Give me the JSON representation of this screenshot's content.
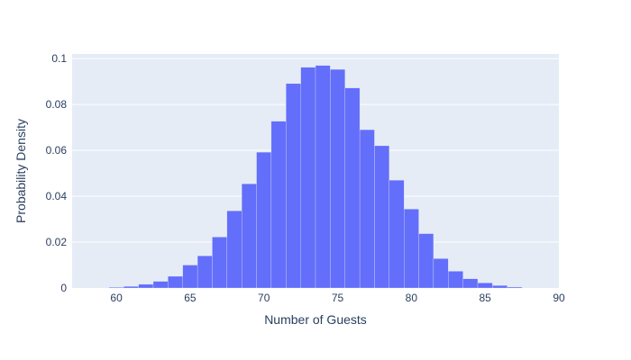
{
  "chart_data": {
    "type": "bar",
    "subtype": "histogram",
    "title": "",
    "xlabel": "Number of Guests",
    "ylabel": "Probability Density",
    "xlim": [
      57,
      90
    ],
    "ylim": [
      0,
      0.102
    ],
    "x_ticks": [
      60,
      65,
      70,
      75,
      80,
      85,
      90
    ],
    "y_ticks": [
      0,
      0.02,
      0.04,
      0.06,
      0.08,
      0.1
    ],
    "y_tick_labels": [
      "0",
      "0.02",
      "0.04",
      "0.06",
      "0.08",
      "0.1"
    ],
    "bin_width": 1,
    "bins": [
      {
        "start": 59.5,
        "value": 0.0003
      },
      {
        "start": 60.5,
        "value": 0.0007
      },
      {
        "start": 61.5,
        "value": 0.0016
      },
      {
        "start": 62.5,
        "value": 0.0029
      },
      {
        "start": 63.5,
        "value": 0.0051
      },
      {
        "start": 64.5,
        "value": 0.01
      },
      {
        "start": 65.5,
        "value": 0.014
      },
      {
        "start": 66.5,
        "value": 0.0222
      },
      {
        "start": 67.5,
        "value": 0.0336
      },
      {
        "start": 68.5,
        "value": 0.0454
      },
      {
        "start": 69.5,
        "value": 0.0592
      },
      {
        "start": 70.5,
        "value": 0.0727
      },
      {
        "start": 71.5,
        "value": 0.0891
      },
      {
        "start": 72.5,
        "value": 0.0962
      },
      {
        "start": 73.5,
        "value": 0.097
      },
      {
        "start": 74.5,
        "value": 0.0953
      },
      {
        "start": 75.5,
        "value": 0.0872
      },
      {
        "start": 76.5,
        "value": 0.069
      },
      {
        "start": 77.5,
        "value": 0.062
      },
      {
        "start": 78.5,
        "value": 0.047
      },
      {
        "start": 79.5,
        "value": 0.0344
      },
      {
        "start": 80.5,
        "value": 0.0237
      },
      {
        "start": 81.5,
        "value": 0.0128
      },
      {
        "start": 82.5,
        "value": 0.0073
      },
      {
        "start": 83.5,
        "value": 0.004
      },
      {
        "start": 84.5,
        "value": 0.0022
      },
      {
        "start": 85.5,
        "value": 0.0011
      },
      {
        "start": 86.5,
        "value": 0.0004
      }
    ],
    "bar_color": "#636efa",
    "plot_bg": "#e5ecf6",
    "grid": true,
    "legend": "none"
  }
}
